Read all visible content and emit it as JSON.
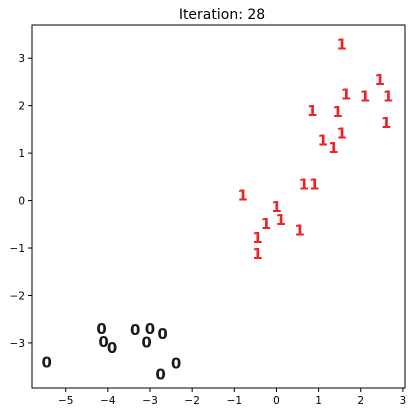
{
  "chart_data": {
    "type": "scatter",
    "title": "Iteration: 28",
    "xlabel": "",
    "ylabel": "",
    "xlim": [
      -5.8,
      3.05
    ],
    "ylim": [
      -3.95,
      3.7
    ],
    "xticks": [
      -5,
      -4,
      -3,
      -2,
      -1,
      0,
      1,
      2,
      3
    ],
    "xtick_labels": [
      "−5",
      "−4",
      "−3",
      "−2",
      "−1",
      "0",
      "1",
      "2",
      "3"
    ],
    "yticks": [
      -3,
      -2,
      -1,
      0,
      1,
      2,
      3
    ],
    "ytick_labels": [
      "−3",
      "−2",
      "−1",
      "0",
      "1",
      "2",
      "3"
    ],
    "grid": false,
    "series": [
      {
        "label": "0",
        "color": "#1a1a1a",
        "points": [
          [
            -4.15,
            -2.7
          ],
          [
            -4.1,
            -2.97
          ],
          [
            -3.9,
            -3.1
          ],
          [
            -3.35,
            -2.72
          ],
          [
            -3.0,
            -2.7
          ],
          [
            -3.08,
            -2.98
          ],
          [
            -2.7,
            -2.8
          ],
          [
            -5.45,
            -3.4
          ],
          [
            -2.38,
            -3.42
          ],
          [
            -2.75,
            -3.65
          ]
        ]
      },
      {
        "label": "1",
        "color": "#ee2222",
        "points": [
          [
            1.55,
            3.3
          ],
          [
            2.45,
            2.55
          ],
          [
            1.65,
            2.25
          ],
          [
            2.1,
            2.2
          ],
          [
            2.65,
            2.2
          ],
          [
            0.85,
            1.9
          ],
          [
            1.45,
            1.88
          ],
          [
            1.55,
            1.42
          ],
          [
            2.6,
            1.65
          ],
          [
            1.1,
            1.28
          ],
          [
            1.35,
            1.12
          ],
          [
            0.65,
            0.35
          ],
          [
            0.9,
            0.35
          ],
          [
            -0.8,
            0.12
          ],
          [
            0.0,
            -0.12
          ],
          [
            0.1,
            -0.4
          ],
          [
            -0.25,
            -0.48
          ],
          [
            0.55,
            -0.62
          ],
          [
            -0.45,
            -0.78
          ],
          [
            -0.45,
            -1.12
          ]
        ]
      }
    ]
  }
}
